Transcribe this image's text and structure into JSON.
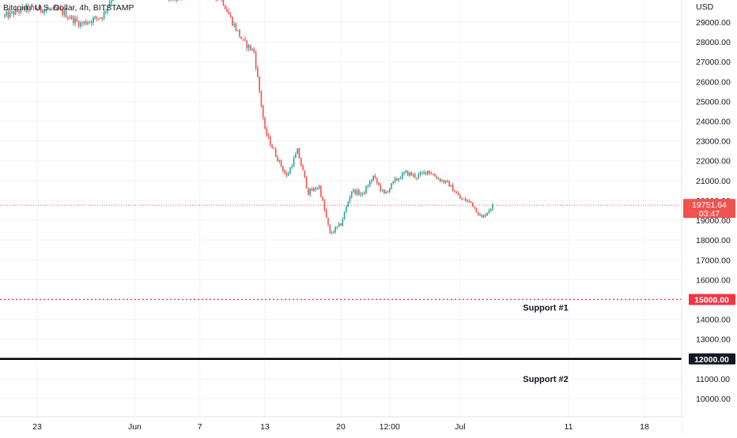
{
  "symbol_title": "Bitcoin / U.S. Dollar, 4h, BITSTAMP",
  "currency_label": "USD",
  "colors": {
    "up": "#26a69a",
    "down": "#ef5350",
    "price_line": "#ef5350",
    "support1_line": "#f23645",
    "support2_line": "#000000",
    "grid": "#f0f3fa",
    "badge_dark": "#131722"
  },
  "last_price": {
    "value": 19751.64,
    "label": "19751.64",
    "countdown": "03:47"
  },
  "annotations": [
    {
      "name": "support-1",
      "label": "Support #1",
      "price": 15000,
      "price_label": "15000.00",
      "style": "dotted"
    },
    {
      "name": "support-2",
      "label": "Support #2",
      "price": 12000,
      "price_label": "12000.00",
      "style": "solid"
    }
  ],
  "chart_data": {
    "type": "candlestick",
    "title": "Bitcoin / U.S. Dollar, 4h, BITSTAMP",
    "interval": "4h",
    "y_unit": "USD",
    "ylim": [
      9000,
      30400
    ],
    "y_ticks": [
      10000,
      11000,
      13000,
      14000,
      16000,
      17000,
      18000,
      19000,
      20000,
      21000,
      22000,
      23000,
      24000,
      25000,
      26000,
      27000,
      28000,
      29000
    ],
    "y_tick_labels": [
      "10000.00",
      "11000.00",
      "13000.00",
      "14000.00",
      "16000.00",
      "17000.00",
      "18000.00",
      "19000.00",
      "20000.00",
      "21000.00",
      "22000.00",
      "23000.00",
      "24000.00",
      "25000.00",
      "26000.00",
      "27000.00",
      "28000.00",
      "29000.00"
    ],
    "x_ticks": [
      {
        "label": "23",
        "date": "2022-05-23"
      },
      {
        "label": "Jun",
        "date": "2022-06-01"
      },
      {
        "label": "7",
        "date": "2022-06-07"
      },
      {
        "label": "13",
        "date": "2022-06-13"
      },
      {
        "label": "20",
        "date": "2022-06-20"
      },
      {
        "label": "12:00",
        "date": "2022-06-24 12:00"
      },
      {
        "label": "Jul",
        "date": "2022-07-01"
      },
      {
        "label": "11",
        "date": "2022-07-11"
      },
      {
        "label": "18",
        "date": "2022-07-18"
      }
    ],
    "price_path": [
      {
        "date": "2022-05-20",
        "close": 29300
      },
      {
        "date": "2022-05-22",
        "close": 29700
      },
      {
        "date": "2022-05-25",
        "close": 29600
      },
      {
        "date": "2022-05-27",
        "close": 28900
      },
      {
        "date": "2022-05-29",
        "close": 29300
      },
      {
        "date": "2022-05-31",
        "close": 31400
      },
      {
        "date": "2022-06-03",
        "close": 30500
      },
      {
        "date": "2022-06-05",
        "close": 30200
      },
      {
        "date": "2022-06-07",
        "close": 30800
      },
      {
        "date": "2022-06-09",
        "close": 30200
      },
      {
        "date": "2022-06-10",
        "close": 29000
      },
      {
        "date": "2022-06-11",
        "close": 28000
      },
      {
        "date": "2022-06-12",
        "close": 27500
      },
      {
        "date": "2022-06-13",
        "close": 23500
      },
      {
        "date": "2022-06-14",
        "close": 22300
      },
      {
        "date": "2022-06-15",
        "close": 21200
      },
      {
        "date": "2022-06-16",
        "close": 22500
      },
      {
        "date": "2022-06-17",
        "close": 20400
      },
      {
        "date": "2022-06-18",
        "close": 20700
      },
      {
        "date": "2022-06-19",
        "close": 18300
      },
      {
        "date": "2022-06-20",
        "close": 18800
      },
      {
        "date": "2022-06-21",
        "close": 20500
      },
      {
        "date": "2022-06-22",
        "close": 20300
      },
      {
        "date": "2022-06-23",
        "close": 21200
      },
      {
        "date": "2022-06-24",
        "close": 20300
      },
      {
        "date": "2022-06-25",
        "close": 21000
      },
      {
        "date": "2022-06-26",
        "close": 21400
      },
      {
        "date": "2022-06-27",
        "close": 21200
      },
      {
        "date": "2022-06-28",
        "close": 21500
      },
      {
        "date": "2022-06-29",
        "close": 21100
      },
      {
        "date": "2022-06-30",
        "close": 20800
      },
      {
        "date": "2022-07-01",
        "close": 20100
      },
      {
        "date": "2022-07-02",
        "close": 19900
      },
      {
        "date": "2022-07-03",
        "close": 19100
      },
      {
        "date": "2022-07-04",
        "close": 19751.64
      }
    ],
    "grid": true,
    "horizontal_lines": [
      {
        "price": 19751.64,
        "style": "dotted"
      },
      {
        "price": 15000,
        "style": "dotted",
        "label": "Support #1"
      },
      {
        "price": 12000,
        "style": "solid",
        "label": "Support #2"
      }
    ]
  }
}
